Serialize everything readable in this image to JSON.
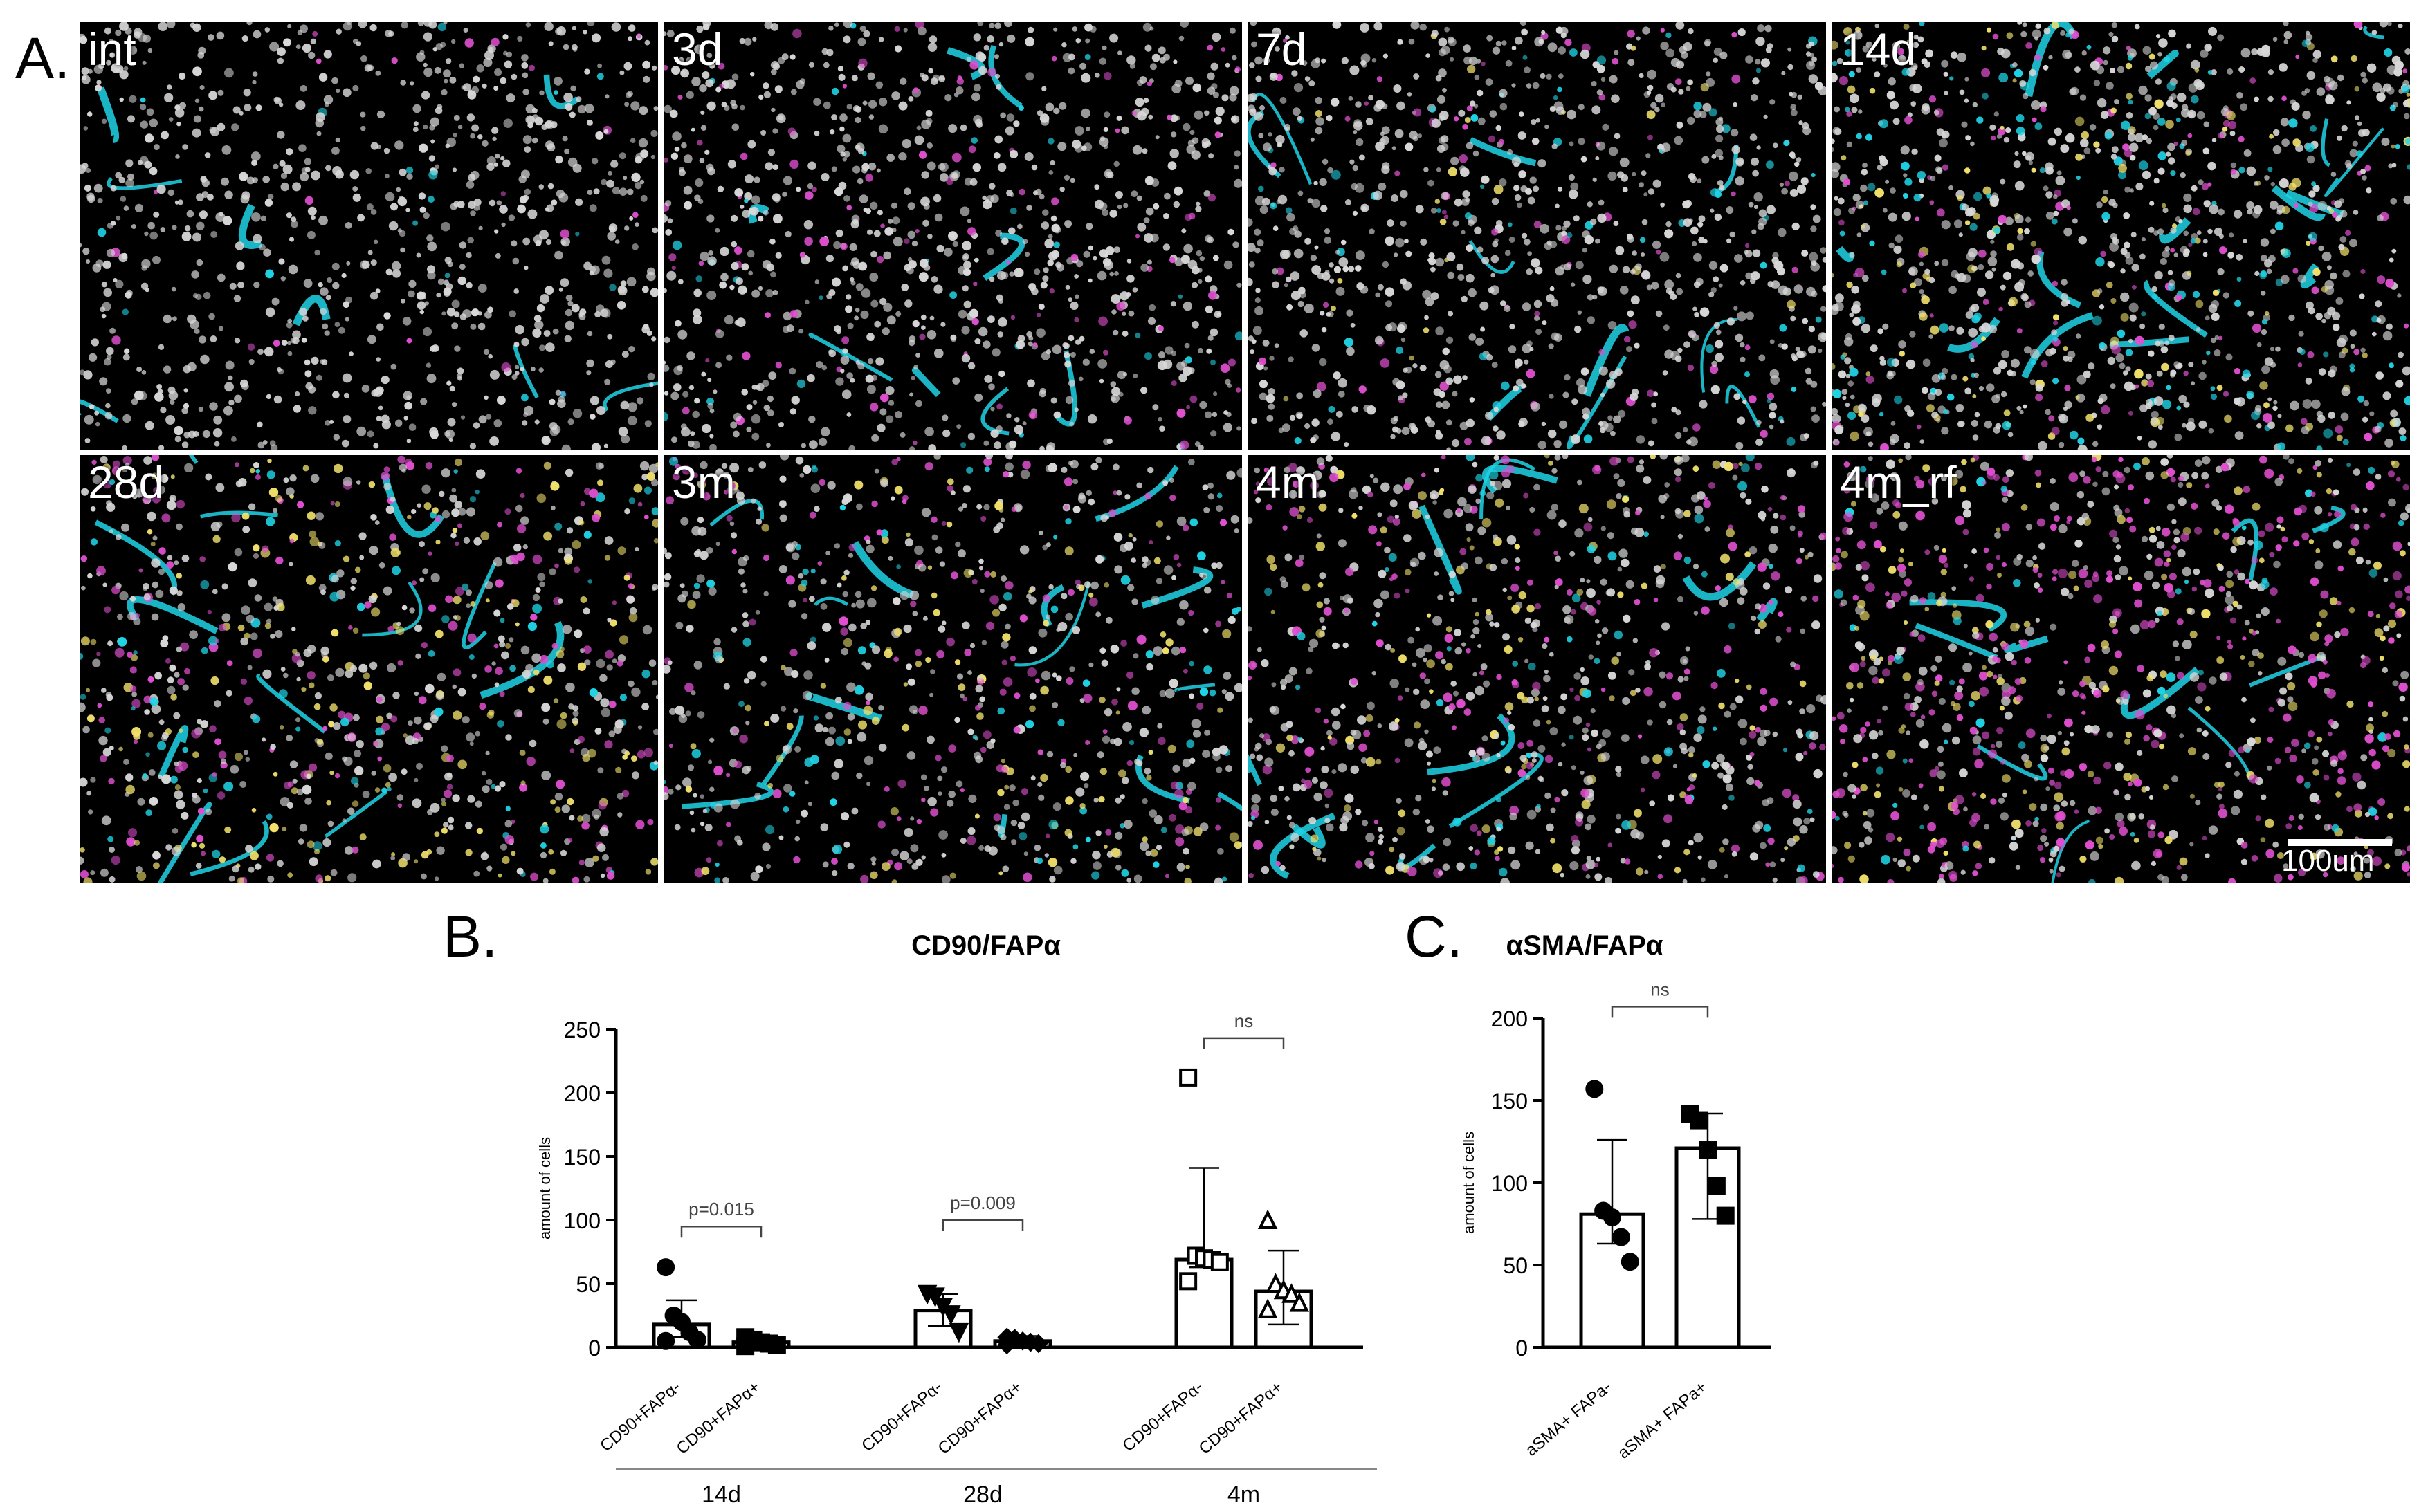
{
  "panels": {
    "a": "A.",
    "b": "B.",
    "c": "C."
  },
  "micrographs": [
    {
      "label": "int",
      "cyan": 0.05,
      "magenta": 0.02,
      "yellow": 0.0,
      "white": 0.93,
      "density": 1.0
    },
    {
      "label": "3d",
      "cyan": 0.08,
      "magenta": 0.1,
      "yellow": 0.0,
      "white": 0.82,
      "density": 1.1
    },
    {
      "label": "7d",
      "cyan": 0.14,
      "magenta": 0.06,
      "yellow": 0.02,
      "white": 0.78,
      "density": 1.1
    },
    {
      "label": "14d",
      "cyan": 0.3,
      "magenta": 0.1,
      "yellow": 0.1,
      "white": 0.5,
      "density": 1.3
    },
    {
      "label": "28d",
      "cyan": 0.22,
      "magenta": 0.18,
      "yellow": 0.22,
      "white": 0.38,
      "density": 1.0
    },
    {
      "label": "3m",
      "cyan": 0.25,
      "magenta": 0.18,
      "yellow": 0.12,
      "white": 0.45,
      "density": 0.9
    },
    {
      "label": "4m",
      "cyan": 0.15,
      "magenta": 0.22,
      "yellow": 0.13,
      "white": 0.5,
      "density": 1.0
    },
    {
      "label": "4m_rf",
      "cyan": 0.12,
      "magenta": 0.4,
      "yellow": 0.2,
      "white": 0.28,
      "density": 1.1
    }
  ],
  "scalebar_label": "100um",
  "colors": {
    "cyan": "#1fd4e6",
    "magenta": "#e04fd0",
    "yellow": "#f2e26b",
    "white": "#d8d8d8"
  },
  "chart_data": [
    {
      "type": "bar",
      "panel": "B.",
      "title": "CD90/FAPα",
      "ylabel": "amount of cells",
      "ylim": [
        0,
        250
      ],
      "yticks": [
        0,
        50,
        100,
        150,
        200,
        250
      ],
      "groups": [
        "14d",
        "28d",
        "4m"
      ],
      "categories": [
        "CD90+FAPα-",
        "CD90+FAPα+",
        "CD90+FAPα-",
        "CD90+FAPα+",
        "CD90+FAPα-",
        "CD90+FAPα+"
      ],
      "values": [
        18,
        4,
        29,
        5,
        69,
        44
      ],
      "sd_low": [
        8,
        1,
        17,
        2,
        63,
        18
      ],
      "sd_high": [
        37,
        9,
        42,
        9,
        141,
        76
      ],
      "points": [
        {
          "marker": "circle",
          "filled": true,
          "y": [
            63,
            25,
            20,
            12,
            6,
            5
          ]
        },
        {
          "marker": "square",
          "filled": true,
          "y": [
            8,
            6,
            4,
            3,
            2,
            1
          ]
        },
        {
          "marker": "triangle-down",
          "filled": true,
          "y": [
            42,
            40,
            32,
            26,
            12
          ]
        },
        {
          "marker": "diamond",
          "filled": true,
          "y": [
            8,
            7,
            5,
            4,
            3,
            2
          ]
        },
        {
          "marker": "square",
          "filled": false,
          "y": [
            212,
            72,
            70,
            69,
            67,
            52
          ]
        },
        {
          "marker": "triangle-up",
          "filled": false,
          "y": [
            100,
            50,
            45,
            42,
            35,
            30
          ]
        }
      ],
      "comparisons": [
        {
          "label": "p=0.015",
          "from": 0,
          "to": 1,
          "y": 95
        },
        {
          "label": "p=0.009",
          "from": 2,
          "to": 3,
          "y": 100
        },
        {
          "label": "ns",
          "from": 4,
          "to": 5,
          "y": 243
        }
      ]
    },
    {
      "type": "bar",
      "panel": "C.",
      "title": "αSMA/FAPα",
      "ylabel": "amount of cells",
      "ylim": [
        0,
        200
      ],
      "yticks": [
        0,
        50,
        100,
        150,
        200
      ],
      "categories": [
        "aSMA+ FAPa-",
        "aSMA+ FAPa+"
      ],
      "values": [
        81,
        121
      ],
      "sd_low": [
        63,
        78
      ],
      "sd_high": [
        126,
        142
      ],
      "points": [
        {
          "marker": "circle",
          "filled": true,
          "y": [
            157,
            83,
            79,
            67,
            52
          ]
        },
        {
          "marker": "square",
          "filled": true,
          "y": [
            142,
            138,
            120,
            98,
            80
          ]
        }
      ],
      "comparisons": [
        {
          "label": "ns",
          "from": 0,
          "to": 1,
          "y": 207
        }
      ]
    }
  ]
}
